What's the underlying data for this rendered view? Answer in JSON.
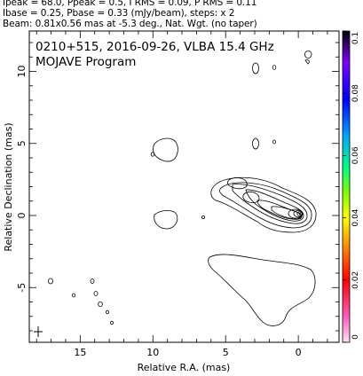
{
  "header": {
    "line1": "Ipeak = 68.0, Ppeak = 0.5, I RMS = 0.09, P RMS = 0.11",
    "line2": "Ibase = 0.25, Pbase = 0.33 (mJy/beam), steps: x 2",
    "line3": "Beam: 0.81x0.56 mas at -5.3 deg., Nat. Wgt. (no taper)"
  },
  "chart_data": {
    "type": "contour",
    "title": "0210+515, 2016-09-26, VLBA 15.4 GHz",
    "subtitle": "MOJAVE Program",
    "xlabel": "Relative R.A. (mas)",
    "ylabel": "Relative Declination (mas)",
    "xlim": [
      18.5,
      -2.8
    ],
    "ylim": [
      -8.8,
      12.8
    ],
    "xticks": [
      15,
      10,
      5,
      0
    ],
    "yticks": [
      10,
      5,
      0,
      -5
    ],
    "grid": false,
    "contour_base_mJy_per_beam": 0.25,
    "contour_step_factor": 2,
    "peak_intensity_mJy_per_beam": 68.0,
    "core_position": [
      0.0,
      0.0
    ],
    "beam": {
      "major_mas": 0.81,
      "minor_mas": 0.56,
      "pa_deg": -5.3
    },
    "colorbar": {
      "ticks": [
        0.1,
        0.08,
        0.06,
        0.04,
        0.02,
        0
      ],
      "tick_labels": [
        "0.1",
        "0.08",
        "0.06",
        "0.04",
        "0.02",
        "0"
      ],
      "colors": [
        "#000000",
        "#8000ff",
        "#0000ff",
        "#00aaff",
        "#00ff80",
        "#80ff00",
        "#ffff00",
        "#ff8000",
        "#ff0000",
        "#ff60c0",
        "#ffe0f0"
      ]
    }
  }
}
